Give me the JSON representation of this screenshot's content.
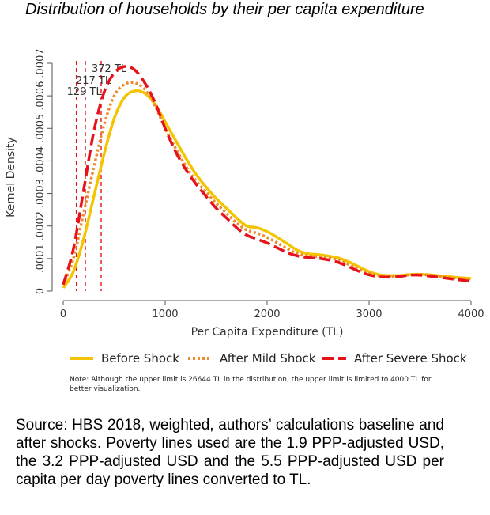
{
  "title": "Distribution of households by their per capita expenditure",
  "chart_data": {
    "type": "line",
    "xlabel": "Per Capita Expenditure (TL)",
    "ylabel": "Kernel Density",
    "xlim": [
      0,
      4000
    ],
    "ylim": [
      0,
      0.0007
    ],
    "xticks": [
      "0",
      "1000",
      "2000",
      "3000",
      "4000"
    ],
    "yticks": [
      "0",
      ".0001",
      ".0002",
      ".0003",
      ".0004",
      ".0005",
      ".0006",
      ".0007"
    ],
    "grid": false,
    "legend_position": "bottom",
    "poverty_lines": [
      {
        "x": 129,
        "label": "129 TL"
      },
      {
        "x": 217,
        "label": "217 TL"
      },
      {
        "x": 372,
        "label": "372 TL"
      }
    ],
    "series": [
      {
        "name": "Before Shock",
        "color": "#f5c400",
        "style": "solid",
        "x": [
          0,
          100,
          200,
          300,
          400,
          500,
          600,
          700,
          800,
          900,
          1000,
          1100,
          1200,
          1300,
          1400,
          1500,
          1600,
          1700,
          1800,
          1900,
          2000,
          2100,
          2200,
          2300,
          2400,
          2500,
          2600,
          2700,
          2800,
          2900,
          3000,
          3100,
          3200,
          3300,
          3400,
          3500,
          3600,
          3700,
          3800,
          3900,
          4000
        ],
        "values": [
          1e-05,
          6e-05,
          0.00016,
          0.00029,
          0.00042,
          0.00053,
          0.000595,
          0.000615,
          0.000608,
          0.000575,
          0.00052,
          0.000465,
          0.00041,
          0.00036,
          0.00032,
          0.000285,
          0.000255,
          0.000225,
          0.0002,
          0.000195,
          0.000183,
          0.000165,
          0.000145,
          0.000125,
          0.000115,
          0.000112,
          0.000108,
          0.000102,
          9e-05,
          7.5e-05,
          6e-05,
          5e-05,
          4.8e-05,
          4.8e-05,
          5.1e-05,
          5.2e-05,
          5e-05,
          4.7e-05,
          4.4e-05,
          4.1e-05,
          3.9e-05
        ]
      },
      {
        "name": "After Mild Shock",
        "color": "#f08a2a",
        "style": "dotted",
        "x": [
          0,
          100,
          200,
          300,
          400,
          500,
          600,
          700,
          800,
          900,
          1000,
          1100,
          1200,
          1300,
          1400,
          1500,
          1600,
          1700,
          1800,
          1900,
          2000,
          2100,
          2200,
          2300,
          2400,
          2500,
          2600,
          2700,
          2800,
          2900,
          3000,
          3100,
          3200,
          3300,
          3400,
          3500,
          3600,
          3700,
          3800,
          3900,
          4000
        ],
        "values": [
          2e-05,
          0.0001,
          0.00024,
          0.00038,
          0.00051,
          0.0006,
          0.000635,
          0.00064,
          0.00062,
          0.00057,
          0.0005,
          0.00044,
          0.000385,
          0.00034,
          0.000305,
          0.00027,
          0.00024,
          0.00021,
          0.000188,
          0.000178,
          0.000165,
          0.000148,
          0.00013,
          0.000115,
          0.000108,
          0.000106,
          0.000102,
          9.5e-05,
          8.2e-05,
          6.7e-05,
          5.5e-05,
          4.7e-05,
          4.5e-05,
          4.6e-05,
          5e-05,
          5.1e-05,
          4.9e-05,
          4.5e-05,
          4.1e-05,
          3.8e-05,
          3.4e-05
        ]
      },
      {
        "name": "After Severe Shock",
        "color": "#e8131a",
        "style": "dashed",
        "x": [
          0,
          100,
          200,
          300,
          400,
          500,
          600,
          700,
          800,
          900,
          1000,
          1100,
          1200,
          1300,
          1400,
          1500,
          1600,
          1700,
          1800,
          1900,
          2000,
          2100,
          2200,
          2300,
          2400,
          2500,
          2600,
          2700,
          2800,
          2900,
          3000,
          3100,
          3200,
          3300,
          3400,
          3500,
          3600,
          3700,
          3800,
          3900,
          4000
        ],
        "values": [
          2e-05,
          0.00013,
          0.00031,
          0.00049,
          0.00061,
          0.00067,
          0.00069,
          0.00068,
          0.00064,
          0.00058,
          0.0005,
          0.00043,
          0.000375,
          0.00033,
          0.000292,
          0.000255,
          0.000225,
          0.000195,
          0.000172,
          0.00016,
          0.000148,
          0.000133,
          0.000118,
          0.000108,
          0.000103,
          0.000101,
          9.6e-05,
          8.8e-05,
          7.5e-05,
          6.1e-05,
          5e-05,
          4.4e-05,
          4.3e-05,
          4.5e-05,
          4.9e-05,
          4.9e-05,
          4.6e-05,
          4.2e-05,
          3.8e-05,
          3.4e-05,
          3e-05
        ]
      }
    ]
  },
  "note": "Note: Although the upper limit is 26644 TL in the distribution, the upper limit is limited to 4000 TL for better visualization.",
  "source": "Source: HBS 2018, weighted, authors’ calculations baseline and after shocks. Poverty lines used are the 1.9 PPP-adjusted USD, the 3.2 PPP-adjusted USD and the 5.5 PPP-adjusted USD per capita per day poverty lines converted to TL."
}
